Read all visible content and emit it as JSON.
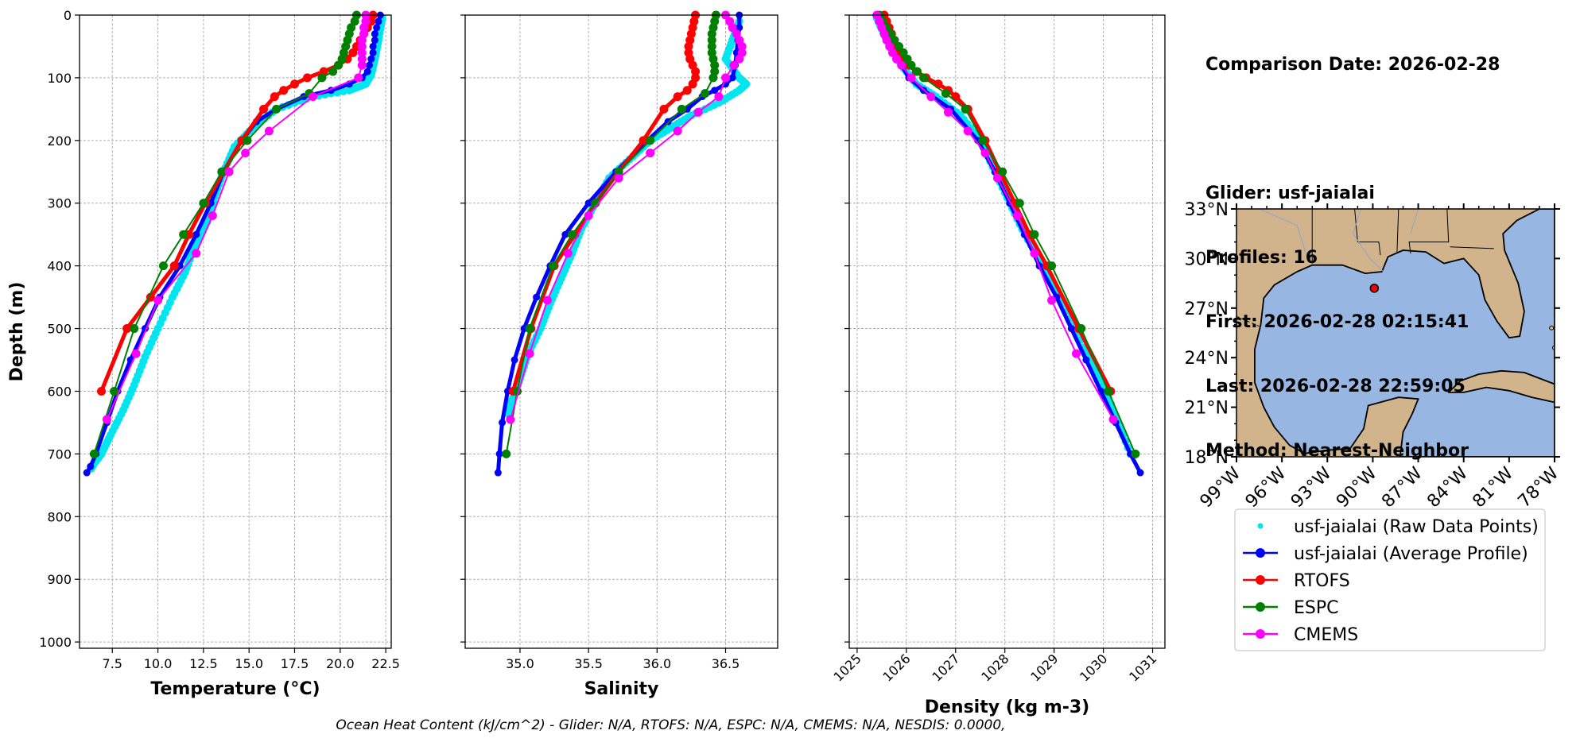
{
  "info": {
    "comparison_date": "Comparison Date: 2026-02-28",
    "glider": "Glider: usf-jaialai",
    "profiles": "Profiles: 16",
    "first": "First: 2026-02-28 02:15:41",
    "last": "Last: 2026-02-28 22:59:05",
    "method": "Method: Nearest-Neighbor"
  },
  "footer": "Ocean Heat Content (kJ/cm^2) - Glider: N/A,  RTOFS: N/A,  ESPC: N/A,  CMEMS: N/A,  NESDIS: 0.0000,",
  "colors": {
    "raw": "#00e5ee",
    "glider": "#0000ff",
    "rtofs": "#ff0000",
    "espc": "#008000",
    "cmems": "#ff00ff",
    "land": "#d2b48c",
    "ocean": "#97b6e1"
  },
  "legend": [
    {
      "label": "usf-jaialai (Raw Data Points)",
      "key": "raw",
      "style": "dot"
    },
    {
      "label": "usf-jaialai (Average Profile)",
      "key": "glider",
      "style": "line"
    },
    {
      "label": "RTOFS",
      "key": "rtofs",
      "style": "line"
    },
    {
      "label": "ESPC",
      "key": "espc",
      "style": "line"
    },
    {
      "label": "CMEMS",
      "key": "cmems",
      "style": "line"
    }
  ],
  "chart_data": [
    {
      "type": "line",
      "xlabel": "Temperature (°C)",
      "ylabel": "Depth (m)",
      "xlim": [
        5.7,
        22.8
      ],
      "ylim": [
        1010,
        0
      ],
      "xticks": [
        7.5,
        10.0,
        12.5,
        15.0,
        17.5,
        20.0,
        22.5
      ],
      "xtick_labels": [
        "7.5",
        "10.0",
        "12.5",
        "15.0",
        "17.5",
        "20.0",
        "22.5"
      ],
      "yticks": [
        0,
        100,
        200,
        300,
        400,
        500,
        600,
        700,
        800,
        900,
        1000
      ],
      "grid": true,
      "raw": {
        "x": [
          22.3,
          22.1,
          21.9,
          21.7,
          21.4,
          20.5,
          18.5,
          16.5,
          15.2,
          14.2,
          13.6,
          13.1,
          12.7,
          12.0,
          11.5,
          10.8,
          10.0,
          9.3,
          8.7,
          8.1,
          7.4,
          6.9,
          6.5,
          6.3
        ],
        "y": [
          5,
          40,
          70,
          95,
          110,
          120,
          130,
          150,
          180,
          210,
          250,
          290,
          330,
          370,
          410,
          450,
          500,
          545,
          590,
          630,
          670,
          700,
          715,
          725
        ]
      },
      "series": [
        {
          "name": "usf-jaialai (Average Profile)",
          "color_key": "glider",
          "width": 5,
          "marker": 7,
          "y": [
            0,
            10,
            20,
            30,
            40,
            50,
            60,
            70,
            80,
            90,
            100,
            110,
            120,
            130,
            150,
            170,
            200,
            250,
            300,
            350,
            400,
            450,
            500,
            550,
            600,
            650,
            700,
            720,
            730
          ],
          "x": [
            22.2,
            22.1,
            22.0,
            21.9,
            21.9,
            21.8,
            21.8,
            21.7,
            21.6,
            21.5,
            21.2,
            20.5,
            19.5,
            18.0,
            16.5,
            15.4,
            14.6,
            13.6,
            12.9,
            12.1,
            11.2,
            10.1,
            9.3,
            8.5,
            7.8,
            7.2,
            6.6,
            6.3,
            6.1
          ]
        },
        {
          "name": "RTOFS",
          "color_key": "rtofs",
          "width": 5,
          "marker": 9,
          "y": [
            0,
            10,
            20,
            30,
            40,
            50,
            60,
            70,
            80,
            90,
            100,
            110,
            120,
            130,
            150,
            200,
            250,
            300,
            350,
            400,
            450,
            500,
            600
          ],
          "x": [
            21.8,
            21.7,
            21.5,
            21.3,
            21.1,
            20.9,
            20.7,
            20.4,
            19.9,
            19.1,
            18.2,
            17.5,
            16.9,
            16.4,
            15.8,
            14.6,
            13.6,
            12.6,
            11.7,
            10.9,
            9.6,
            8.3,
            6.9
          ]
        },
        {
          "name": "ESPC",
          "color_key": "espc",
          "width": 2,
          "marker": 9,
          "y": [
            0,
            10,
            20,
            30,
            40,
            50,
            60,
            70,
            80,
            90,
            100,
            125,
            150,
            200,
            250,
            300,
            350,
            400,
            500,
            600,
            700
          ],
          "x": [
            20.9,
            20.8,
            20.6,
            20.5,
            20.4,
            20.3,
            20.2,
            20.1,
            19.9,
            19.6,
            19.0,
            18.3,
            16.5,
            14.9,
            13.5,
            12.5,
            11.4,
            10.3,
            8.7,
            7.6,
            6.5
          ]
        },
        {
          "name": "CMEMS",
          "color_key": "cmems",
          "width": 2,
          "marker": 9,
          "y": [
            0,
            10,
            20,
            30,
            40,
            50,
            60,
            70,
            80,
            100,
            130,
            185,
            220,
            250,
            320,
            380,
            455,
            540,
            645
          ],
          "x": [
            21.4,
            21.4,
            21.3,
            21.3,
            21.2,
            21.2,
            21.2,
            21.2,
            21.2,
            21.0,
            18.5,
            16.1,
            14.8,
            13.9,
            13.0,
            12.1,
            10.0,
            8.8,
            7.2
          ]
        }
      ]
    },
    {
      "type": "line",
      "xlabel": "Salinity",
      "xlim": [
        34.6,
        36.88
      ],
      "ylim": [
        1010,
        0
      ],
      "xticks": [
        35.0,
        35.5,
        36.0,
        36.5
      ],
      "xtick_labels": [
        "35.0",
        "35.5",
        "36.0",
        "36.5"
      ],
      "yticks": [
        0,
        100,
        200,
        300,
        400,
        500,
        600,
        700,
        800,
        900,
        1000
      ],
      "grid": true,
      "raw": {
        "x": [
          36.6,
          36.55,
          36.5,
          36.6,
          36.65,
          36.6,
          36.45,
          36.25,
          36.1,
          35.95,
          35.8,
          35.65,
          35.55,
          35.45,
          35.38,
          35.3,
          35.22,
          35.15,
          35.06,
          35.0,
          34.95,
          34.9
        ],
        "y": [
          10,
          40,
          70,
          100,
          110,
          120,
          140,
          160,
          180,
          200,
          230,
          260,
          300,
          340,
          380,
          420,
          460,
          500,
          540,
          580,
          610,
          640
        ]
      },
      "series": [
        {
          "name": "usf-jaialai (Average Profile)",
          "color_key": "glider",
          "width": 5,
          "marker": 7,
          "y": [
            0,
            20,
            40,
            60,
            80,
            100,
            110,
            120,
            130,
            150,
            170,
            200,
            250,
            300,
            350,
            400,
            450,
            500,
            550,
            600,
            650,
            700,
            730
          ],
          "x": [
            36.6,
            36.6,
            36.59,
            36.58,
            36.57,
            36.55,
            36.5,
            36.42,
            36.33,
            36.22,
            36.08,
            35.93,
            35.7,
            35.5,
            35.33,
            35.22,
            35.12,
            35.03,
            34.96,
            34.91,
            34.87,
            34.85,
            34.84
          ]
        },
        {
          "name": "RTOFS",
          "color_key": "rtofs",
          "width": 5,
          "marker": 9,
          "y": [
            0,
            10,
            20,
            30,
            40,
            50,
            60,
            70,
            80,
            90,
            100,
            110,
            120,
            130,
            150,
            200,
            250,
            300,
            350,
            400,
            500,
            600
          ],
          "x": [
            36.28,
            36.27,
            36.26,
            36.25,
            36.24,
            36.23,
            36.23,
            36.24,
            36.26,
            36.28,
            36.28,
            36.26,
            36.22,
            36.15,
            36.05,
            35.9,
            35.72,
            35.55,
            35.4,
            35.25,
            35.08,
            34.95
          ]
        },
        {
          "name": "ESPC",
          "color_key": "espc",
          "width": 2,
          "marker": 9,
          "y": [
            0,
            10,
            20,
            30,
            40,
            50,
            60,
            70,
            80,
            90,
            100,
            125,
            150,
            200,
            250,
            300,
            350,
            400,
            500,
            600,
            700
          ],
          "x": [
            36.43,
            36.42,
            36.41,
            36.4,
            36.4,
            36.4,
            36.4,
            36.41,
            36.42,
            36.42,
            36.41,
            36.35,
            36.18,
            35.95,
            35.72,
            35.55,
            35.38,
            35.24,
            35.07,
            34.98,
            34.9
          ]
        },
        {
          "name": "CMEMS",
          "color_key": "cmems",
          "width": 2,
          "marker": 9,
          "y": [
            0,
            10,
            20,
            30,
            40,
            50,
            60,
            70,
            80,
            100,
            130,
            155,
            185,
            220,
            260,
            320,
            380,
            455,
            540,
            645
          ],
          "x": [
            36.5,
            36.53,
            36.55,
            36.58,
            36.6,
            36.62,
            36.62,
            36.6,
            36.56,
            36.5,
            36.45,
            36.3,
            36.15,
            35.95,
            35.72,
            35.5,
            35.35,
            35.2,
            35.07,
            34.93
          ]
        }
      ]
    },
    {
      "type": "line",
      "xlabel": "Density (kg m-3)",
      "xlim": [
        1024.84,
        1031.25
      ],
      "ylim": [
        1010,
        0
      ],
      "xticks": [
        1025,
        1026,
        1027,
        1028,
        1029,
        1030,
        1031
      ],
      "xtick_labels": [
        "1025",
        "1026",
        "1027",
        "1028",
        "1029",
        "1030",
        "1031"
      ],
      "yticks": [
        0,
        100,
        200,
        300,
        400,
        500,
        600,
        700,
        800,
        900,
        1000
      ],
      "grid": true,
      "raw": {
        "x": [
          1025.4,
          1025.6,
          1025.9,
          1026.2,
          1026.6,
          1027.1,
          1027.5,
          1027.8,
          1028.1,
          1028.4,
          1028.8,
          1029.2,
          1029.6,
          1030.0,
          1030.3,
          1030.6
        ],
        "y": [
          5,
          40,
          80,
          110,
          130,
          160,
          200,
          250,
          300,
          350,
          400,
          460,
          530,
          590,
          650,
          710
        ]
      },
      "series": [
        {
          "name": "usf-jaialai (Average Profile)",
          "color_key": "glider",
          "width": 5,
          "marker": 7,
          "y": [
            0,
            20,
            40,
            60,
            80,
            100,
            120,
            150,
            200,
            250,
            300,
            350,
            400,
            450,
            500,
            550,
            600,
            650,
            700,
            730
          ],
          "x": [
            1025.4,
            1025.5,
            1025.6,
            1025.75,
            1025.9,
            1026.05,
            1026.35,
            1026.9,
            1027.45,
            1027.8,
            1028.1,
            1028.4,
            1028.7,
            1029.05,
            1029.35,
            1029.65,
            1029.95,
            1030.25,
            1030.55,
            1030.75
          ]
        },
        {
          "name": "RTOFS",
          "color_key": "rtofs",
          "width": 5,
          "marker": 9,
          "y": [
            0,
            10,
            20,
            30,
            40,
            50,
            60,
            70,
            80,
            90,
            100,
            110,
            120,
            130,
            150,
            200,
            250,
            300,
            350,
            400,
            500,
            600
          ],
          "x": [
            1025.55,
            1025.6,
            1025.65,
            1025.7,
            1025.75,
            1025.8,
            1025.87,
            1025.95,
            1026.05,
            1026.2,
            1026.4,
            1026.65,
            1026.85,
            1027.0,
            1027.25,
            1027.6,
            1027.9,
            1028.2,
            1028.5,
            1028.85,
            1029.5,
            1030.15
          ]
        },
        {
          "name": "ESPC",
          "color_key": "espc",
          "width": 2,
          "marker": 9,
          "y": [
            0,
            10,
            20,
            30,
            40,
            50,
            60,
            70,
            80,
            90,
            100,
            125,
            150,
            200,
            250,
            300,
            350,
            400,
            500,
            600,
            700
          ],
          "x": [
            1025.45,
            1025.52,
            1025.6,
            1025.68,
            1025.76,
            1025.85,
            1025.94,
            1026.02,
            1026.1,
            1026.22,
            1026.35,
            1026.8,
            1027.2,
            1027.55,
            1027.95,
            1028.3,
            1028.6,
            1028.95,
            1029.55,
            1030.1,
            1030.65
          ]
        },
        {
          "name": "CMEMS",
          "color_key": "cmems",
          "width": 2,
          "marker": 9,
          "y": [
            0,
            10,
            20,
            30,
            40,
            50,
            60,
            70,
            80,
            100,
            130,
            155,
            185,
            220,
            260,
            320,
            380,
            455,
            540,
            645
          ],
          "x": [
            1025.4,
            1025.45,
            1025.5,
            1025.55,
            1025.6,
            1025.66,
            1025.72,
            1025.8,
            1025.9,
            1026.1,
            1026.5,
            1026.85,
            1027.25,
            1027.6,
            1027.85,
            1028.25,
            1028.6,
            1028.95,
            1029.45,
            1030.2
          ]
        }
      ]
    },
    {
      "type": "map",
      "lon_range": [
        -99,
        -78
      ],
      "lat_range": [
        18,
        33
      ],
      "xticks": [
        -99,
        -96,
        -93,
        -90,
        -87,
        -84,
        -81,
        -78
      ],
      "xtick_labels": [
        "99°W",
        "96°W",
        "93°W",
        "90°W",
        "87°W",
        "84°W",
        "81°W",
        "78°W"
      ],
      "yticks": [
        33,
        30,
        27,
        24,
        21,
        18
      ],
      "ytick_labels": [
        "33°N",
        "30°N",
        "27°N",
        "24°N",
        "21°N",
        "18°N"
      ],
      "marker": {
        "lon": -89.9,
        "lat": 28.2
      }
    }
  ]
}
